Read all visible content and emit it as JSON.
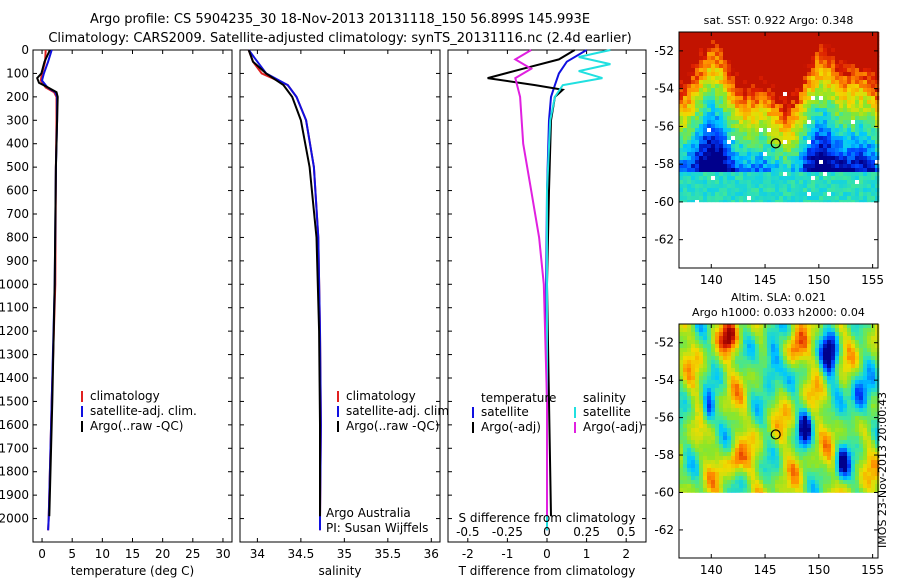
{
  "title": {
    "line1": "Argo profile: CS 5904235_30 18-Nov-2013 20131118_150 56.899S 145.993E",
    "line2": "Climatology: CARS2009. Satellite-adjusted climatology: synTS_20131116.nc (2.4d earlier)"
  },
  "depth_ticks": [
    "0",
    "100",
    "200",
    "300",
    "400",
    "500",
    "600",
    "700",
    "800",
    "900",
    "1000",
    "1100",
    "1200",
    "1300",
    "1400",
    "1500",
    "1600",
    "1700",
    "1800",
    "1900",
    "2000"
  ],
  "colors": {
    "climatology": "#e02020",
    "satellite": "#1010e0",
    "argo": "#000000",
    "salinity_sat": "#20e0e0",
    "salinity_argo": "#e020e0"
  },
  "chart_data": [
    {
      "type": "line",
      "name": "temperature-panel",
      "xlabel": "temperature (deg C)",
      "ylim": [
        2100,
        0
      ],
      "xlim": [
        -1.5,
        31.5
      ],
      "xticks": [
        "0",
        "5",
        "10",
        "15",
        "20",
        "25",
        "30"
      ],
      "legend": [
        "climatology",
        "satellite-adj. clim.",
        "Argo(..raw -QC)"
      ],
      "series": [
        {
          "name": "climatology",
          "depth": [
            0,
            50,
            100,
            130,
            160,
            180,
            200,
            300,
            500,
            1000,
            1500,
            2000,
            2050
          ],
          "values": [
            0.6,
            0.5,
            0.0,
            -0.2,
            0.6,
            2.0,
            2.4,
            2.4,
            2.3,
            2.2,
            1.6,
            1.1,
            1.0
          ]
        },
        {
          "name": "satellite-adj. clim.",
          "depth": [
            0,
            50,
            100,
            130,
            160,
            180,
            200,
            300,
            500,
            1000,
            1500,
            2000,
            2050
          ],
          "values": [
            1.6,
            1.0,
            0.3,
            0.0,
            0.9,
            2.2,
            2.5,
            2.5,
            2.3,
            2.1,
            1.6,
            1.1,
            1.0
          ]
        },
        {
          "name": "Argo(..raw -QC)",
          "depth": [
            0,
            50,
            100,
            120,
            140,
            160,
            180,
            200,
            300,
            500,
            1000,
            1500,
            1990
          ],
          "values": [
            1.3,
            0.4,
            -0.1,
            -0.8,
            -0.5,
            1.0,
            2.4,
            2.6,
            2.5,
            2.3,
            2.1,
            1.7,
            1.2
          ]
        }
      ]
    },
    {
      "type": "line",
      "name": "salinity-panel",
      "xlabel": "salinity",
      "ylim": [
        2100,
        0
      ],
      "xlim": [
        33.8,
        36.1
      ],
      "xticks": [
        "34",
        "34.5",
        "35",
        "35.5",
        "36"
      ],
      "legend": [
        "climatology",
        "satellite-adj. clim.",
        "Argo(..raw -QC)"
      ],
      "annotation": [
        "Argo Australia",
        "PI: Susan Wijffels"
      ],
      "series": [
        {
          "name": "climatology",
          "depth": [
            0,
            50,
            100,
            150,
            200,
            300,
            500,
            800,
            1200,
            1600,
            2000,
            2050
          ],
          "values": [
            33.9,
            33.95,
            34.05,
            34.35,
            34.45,
            34.56,
            34.65,
            34.7,
            34.72,
            34.73,
            34.72,
            34.72
          ]
        },
        {
          "name": "satellite-adj. clim.",
          "depth": [
            0,
            50,
            100,
            150,
            200,
            300,
            500,
            800,
            1200,
            1600,
            2000,
            2050
          ],
          "values": [
            33.9,
            34.0,
            34.1,
            34.35,
            34.45,
            34.56,
            34.65,
            34.7,
            34.72,
            34.73,
            34.72,
            34.72
          ]
        },
        {
          "name": "Argo(..raw -QC)",
          "depth": [
            0,
            50,
            100,
            150,
            200,
            300,
            500,
            800,
            1200,
            1600,
            1990
          ],
          "values": [
            33.9,
            33.95,
            34.1,
            34.3,
            34.4,
            34.5,
            34.6,
            34.68,
            34.71,
            34.72,
            34.72
          ]
        }
      ]
    },
    {
      "type": "line",
      "name": "difference-panel",
      "xlabel": "T difference from climatology",
      "xlabel2": "S difference from climatology",
      "ylim": [
        2100,
        0
      ],
      "xlim": [
        -2.5,
        2.5
      ],
      "xticks": [
        "-2",
        "-1",
        "0",
        "1",
        "2"
      ],
      "xticks2": [
        "-0.5",
        "-0.25",
        "0",
        "0.25",
        "0.5"
      ],
      "legend_titles": [
        "temperature",
        "salinity"
      ],
      "legend": [
        "satellite",
        "Argo(-adj)",
        "satellite",
        "Argo(-adj)"
      ],
      "series": [
        {
          "name": "temperature satellite",
          "depth": [
            0,
            50,
            100,
            150,
            200,
            300,
            600,
            1000,
            1500,
            2050
          ],
          "values": [
            1.0,
            0.5,
            0.3,
            0.2,
            0.1,
            0.05,
            0.0,
            -0.02,
            0.0,
            0.0
          ]
        },
        {
          "name": "temperature Argo(-adj)",
          "depth": [
            0,
            40,
            80,
            120,
            150,
            170,
            200,
            300,
            600,
            1000,
            1500,
            1990
          ],
          "values": [
            0.7,
            0.3,
            -0.6,
            -1.5,
            -0.3,
            0.4,
            0.2,
            0.1,
            0.05,
            0.0,
            0.05,
            0.1
          ]
        },
        {
          "name": "salinity satellite",
          "depth": [
            0,
            30,
            60,
            90,
            120,
            150,
            200,
            300,
            600,
            1000,
            1500,
            2050
          ],
          "values": [
            0.4,
            0.2,
            0.4,
            0.2,
            0.35,
            0.1,
            0.05,
            0.02,
            0.0,
            0.0,
            0.0,
            0.0
          ]
        },
        {
          "name": "salinity Argo(-adj)",
          "depth": [
            0,
            40,
            80,
            120,
            200,
            400,
            600,
            800,
            1000,
            1500,
            1990
          ],
          "values": [
            -0.1,
            -0.2,
            -0.1,
            -0.2,
            -0.17,
            -0.15,
            -0.1,
            -0.05,
            -0.02,
            0.0,
            0.0
          ]
        }
      ]
    },
    {
      "type": "heatmap",
      "name": "sst-map",
      "title": "sat. SST: 0.922 Argo: 0.348",
      "xlim": [
        137,
        155.5
      ],
      "ylim": [
        -63.5,
        -51
      ],
      "xticks": [
        "140",
        "145",
        "150",
        "155"
      ],
      "yticks": [
        "-52",
        "-54",
        "-56",
        "-58",
        "-60",
        "-62"
      ],
      "marker": {
        "lon": 145.99,
        "lat": -56.9
      }
    },
    {
      "type": "heatmap",
      "name": "sla-map",
      "title": "Altim. SLA: 0.021",
      "subtitle": "Argo h1000: 0.033 h2000: 0.04",
      "xlim": [
        137,
        155.5
      ],
      "ylim": [
        -63.5,
        -51
      ],
      "xticks": [
        "140",
        "145",
        "150",
        "155"
      ],
      "yticks": [
        "-52",
        "-54",
        "-56",
        "-58",
        "-60",
        "-62"
      ],
      "marker": {
        "lon": 145.99,
        "lat": -56.9
      }
    }
  ],
  "side_label": "IMOS 23-Nov-2013 20:00:43"
}
